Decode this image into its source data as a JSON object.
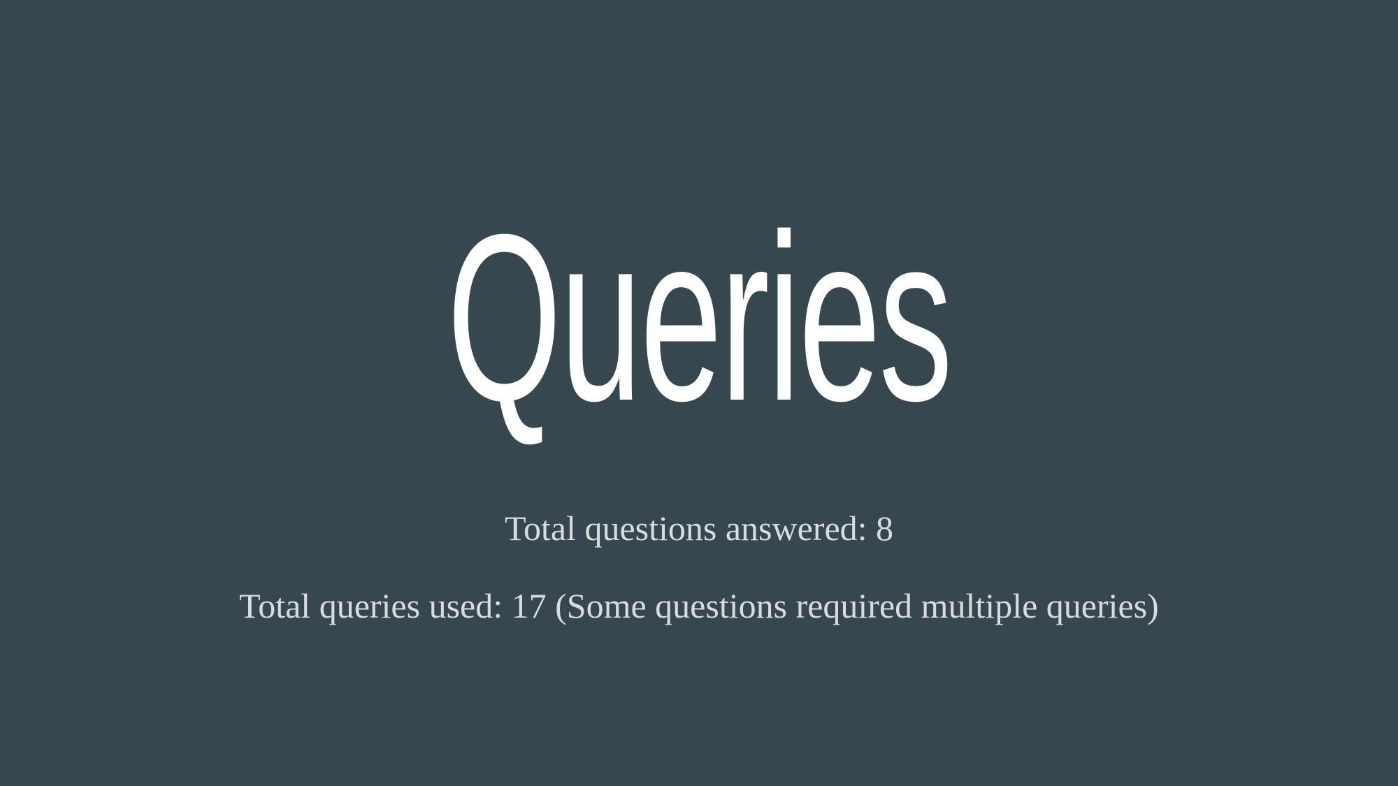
{
  "slide": {
    "title": "Queries",
    "lines": [
      "Total questions answered: 8",
      "Total queries used: 17 (Some questions required multiple queries)"
    ],
    "colors": {
      "background": "#37474f",
      "title": "#ffffff",
      "body_text": "#d9dcde"
    }
  }
}
